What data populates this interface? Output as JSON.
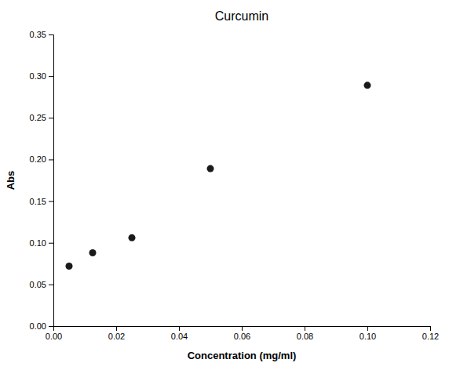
{
  "chart_data": {
    "type": "scatter",
    "title": "Curcumin",
    "xlabel": "Concentration (mg/ml)",
    "ylabel": "Abs",
    "x": [
      0.005,
      0.0125,
      0.025,
      0.05,
      0.1
    ],
    "y": [
      0.072,
      0.088,
      0.106,
      0.189,
      0.289
    ],
    "color": "#1a1a1a",
    "marker": "circle",
    "xlim": [
      0.0,
      0.12
    ],
    "ylim": [
      0.0,
      0.35
    ],
    "xticks": [
      {
        "value": 0.0,
        "label": "0.00"
      },
      {
        "value": 0.02,
        "label": "0.02"
      },
      {
        "value": 0.04,
        "label": "0.04"
      },
      {
        "value": 0.06,
        "label": "0.06"
      },
      {
        "value": 0.08,
        "label": "0.08"
      },
      {
        "value": 0.1,
        "label": "0.10"
      },
      {
        "value": 0.12,
        "label": "0.12"
      }
    ],
    "yticks": [
      {
        "value": 0.0,
        "label": "0.00"
      },
      {
        "value": 0.05,
        "label": "0.05"
      },
      {
        "value": 0.1,
        "label": "0.10"
      },
      {
        "value": 0.15,
        "label": "0.15"
      },
      {
        "value": 0.2,
        "label": "0.20"
      },
      {
        "value": 0.25,
        "label": "0.25"
      },
      {
        "value": 0.3,
        "label": "0.30"
      },
      {
        "value": 0.35,
        "label": "0.35"
      }
    ],
    "grid": false
  }
}
